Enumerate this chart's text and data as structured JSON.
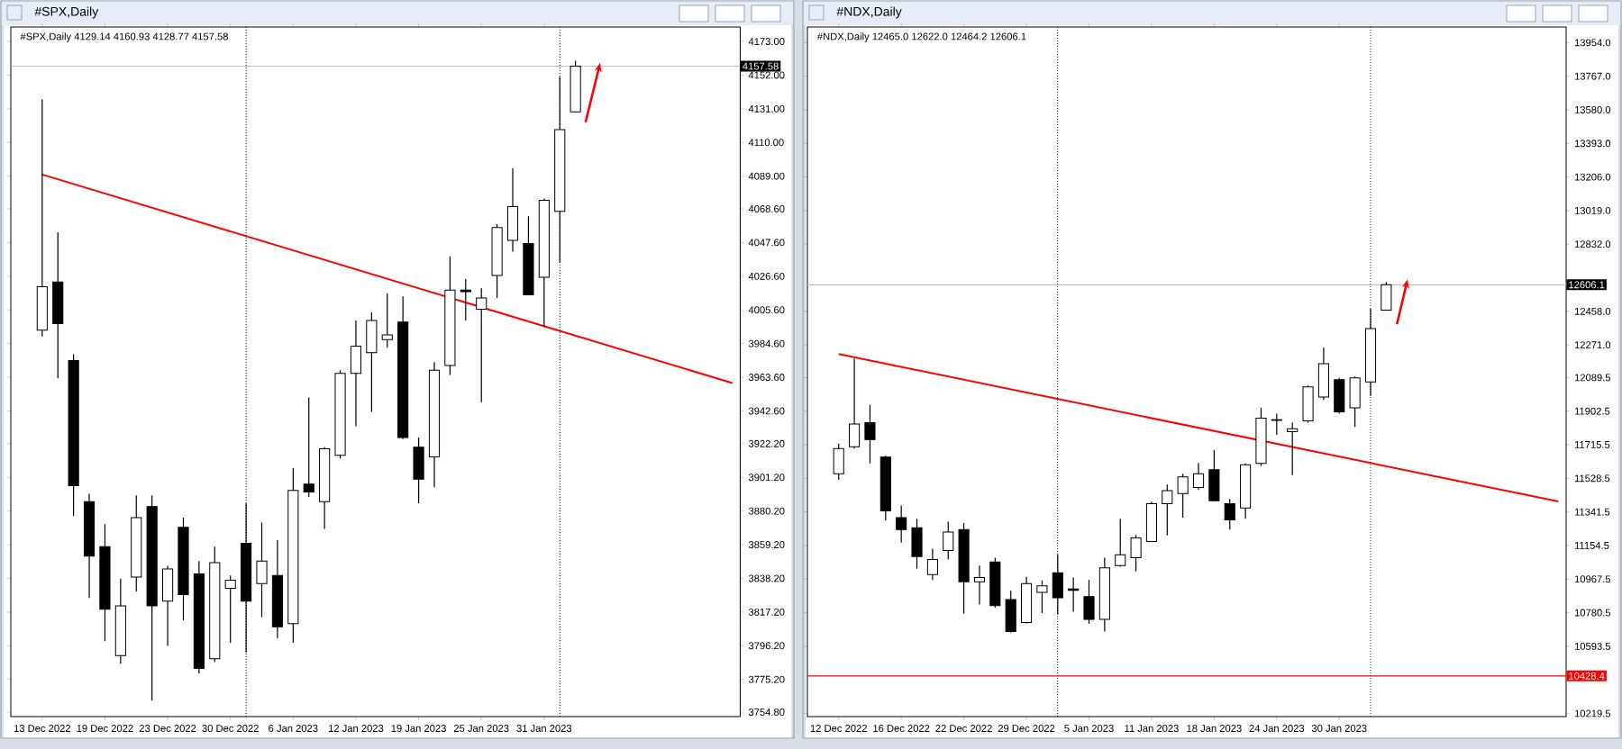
{
  "chart_data": [
    {
      "type": "candlestick",
      "title": "#SPX,Daily",
      "subtitle": "#SPX,Daily  4129.14 4160.93 4128.77 4157.58",
      "categories": [
        "13 Dec 2022",
        null,
        null,
        null,
        "19 Dec 2022",
        null,
        null,
        null,
        "23 Dec 2022",
        null,
        null,
        null,
        "30 Dec 2022",
        null,
        null,
        null,
        "6 Jan 2023",
        null,
        null,
        null,
        "12 Jan 2023",
        null,
        null,
        null,
        "19 Jan 2023",
        null,
        null,
        null,
        "25 Jan 2023",
        null,
        null,
        null,
        "31 Jan 2023",
        null,
        null,
        null,
        null,
        null,
        null,
        null,
        null,
        null,
        null,
        null,
        null
      ],
      "ohlc": [
        [
          3993,
          4137,
          3989,
          4020
        ],
        [
          4023,
          4054,
          3963,
          3997
        ],
        [
          3974,
          3978,
          3877,
          3896
        ],
        [
          3886,
          3891,
          3826,
          3852
        ],
        [
          3858,
          3872,
          3799,
          3819
        ],
        [
          3790,
          3838,
          3785,
          3821
        ],
        [
          3839,
          3890,
          3830,
          3876
        ],
        [
          3883,
          3890,
          3762,
          3821
        ],
        [
          3824,
          3846,
          3796,
          3844
        ],
        [
          3870,
          3876,
          3812,
          3828
        ],
        [
          3841,
          3849,
          3779,
          3782
        ],
        [
          3788,
          3858,
          3786,
          3848
        ],
        [
          3832,
          3840,
          3798,
          3837
        ],
        [
          3860,
          3885,
          3792,
          3824
        ],
        [
          3835,
          3873,
          3814,
          3849
        ],
        [
          3840,
          3862,
          3801,
          3808
        ],
        [
          3810,
          3907,
          3798,
          3893
        ],
        [
          3897,
          3951,
          3889,
          3892
        ],
        [
          3886,
          3920,
          3869,
          3919
        ],
        [
          3915,
          3968,
          3913,
          3966
        ],
        [
          3966,
          3999,
          3933,
          3983
        ],
        [
          3979,
          4004,
          3942,
          3999
        ],
        [
          3987,
          4016,
          3982,
          3990
        ],
        [
          3998,
          4014,
          3925,
          3926
        ],
        [
          3920,
          3926,
          3885,
          3900
        ],
        [
          3914,
          3973,
          3895,
          3968
        ],
        [
          3971,
          4039,
          3965,
          4018
        ],
        [
          4018,
          4025,
          3999,
          4017
        ],
        [
          4006,
          4019,
          3948,
          4013
        ],
        [
          4027,
          4059,
          4013,
          4057
        ],
        [
          4049,
          4094,
          4042,
          4070
        ],
        [
          4047,
          4064,
          4015,
          4015
        ],
        [
          4026,
          4075,
          3995,
          4074
        ],
        [
          4067,
          4151,
          4035,
          4118
        ],
        [
          4129.14,
          4160.93,
          4128.77,
          4157.58
        ],
        null,
        null,
        null,
        null,
        null,
        null,
        null,
        null,
        null,
        null
      ],
      "series": [
        {
          "type": "line",
          "color": "#ff0000",
          "values": [
            4090,
            null,
            null,
            null,
            null,
            null,
            null,
            null,
            null,
            null,
            null,
            null,
            null,
            null,
            null,
            null,
            null,
            null,
            null,
            null,
            null,
            null,
            null,
            null,
            null,
            null,
            null,
            null,
            null,
            null,
            null,
            null,
            null,
            null,
            null,
            null,
            null,
            null,
            null,
            null,
            null,
            null,
            null,
            null,
            3960
          ]
        }
      ],
      "ylim": [
        3752,
        4182
      ],
      "yticks": [
        {
          "value": 4173,
          "label": "4173.00"
        },
        {
          "value": 4152,
          "label": "4152.00"
        },
        {
          "value": 4131,
          "label": "4131.00"
        },
        {
          "value": 4110,
          "label": "4110.00"
        },
        {
          "value": 4089,
          "label": "4089.00"
        },
        {
          "value": 4068.6,
          "label": "4068.60"
        },
        {
          "value": 4047.6,
          "label": "4047.60"
        },
        {
          "value": 4026.6,
          "label": "4026.60"
        },
        {
          "value": 4005.6,
          "label": "4005.60"
        },
        {
          "value": 3984.6,
          "label": "3984.60"
        },
        {
          "value": 3963.6,
          "label": "3963.60"
        },
        {
          "value": 3942.6,
          "label": "3942.60"
        },
        {
          "value": 3922.2,
          "label": "3922.20"
        },
        {
          "value": 3901.2,
          "label": "3901.20"
        },
        {
          "value": 3880.2,
          "label": "3880.20"
        },
        {
          "value": 3859.2,
          "label": "3859.20"
        },
        {
          "value": 3838.2,
          "label": "3838.20"
        },
        {
          "value": 3817.2,
          "label": "3817.20"
        },
        {
          "value": 3796.2,
          "label": "3796.20"
        },
        {
          "value": 3775.2,
          "label": "3775.20"
        },
        {
          "value": 3754.8,
          "label": "3754.80"
        }
      ],
      "ref_lines": [
        {
          "axis": "y",
          "value": 4157.58,
          "label": "4157.58",
          "color": "#c0c0c0"
        }
      ]
    },
    {
      "type": "candlestick",
      "title": "#NDX,Daily",
      "subtitle": "#NDX,Daily  12465.0 12622.0 12464.2 12606.1",
      "categories": [
        "12 Dec 2022",
        null,
        null,
        null,
        "16 Dec 2022",
        null,
        null,
        null,
        "22 Dec 2022",
        null,
        null,
        null,
        "29 Dec 2022",
        null,
        null,
        null,
        "5 Jan 2023",
        null,
        null,
        null,
        "11 Jan 2023",
        null,
        null,
        null,
        "18 Jan 2023",
        null,
        null,
        null,
        "24 Jan 2023",
        null,
        null,
        null,
        "30 Jan 2023",
        null,
        null,
        null,
        null,
        null,
        null,
        null,
        null,
        null,
        null,
        null,
        null,
        null,
        null
      ],
      "ohlc": [
        [
          11554,
          11721,
          11520,
          11694
        ],
        [
          11704,
          12195,
          11694,
          11831
        ],
        [
          11838,
          11938,
          11611,
          11744
        ],
        [
          11647,
          11654,
          11293,
          11347
        ],
        [
          11310,
          11377,
          11170,
          11243
        ],
        [
          11253,
          11303,
          11026,
          11093
        ],
        [
          10993,
          11137,
          10963,
          11076
        ],
        [
          11127,
          11287,
          11076,
          11230
        ],
        [
          11243,
          11280,
          10776,
          10953
        ],
        [
          10953,
          11043,
          10826,
          10976
        ],
        [
          11063,
          11086,
          10809,
          10820
        ],
        [
          10853,
          10903,
          10669,
          10676
        ],
        [
          10726,
          10980,
          10719,
          10943
        ],
        [
          10893,
          10960,
          10779,
          10930
        ],
        [
          11003,
          11103,
          10769,
          10863
        ],
        [
          10913,
          10976,
          10786,
          10905
        ],
        [
          10870,
          10963,
          10719,
          10743
        ],
        [
          10743,
          11086,
          10676,
          11030
        ],
        [
          11043,
          11303,
          11036,
          11103
        ],
        [
          11086,
          11213,
          11010,
          11197
        ],
        [
          11177,
          11397,
          11177,
          11387
        ],
        [
          11387,
          11494,
          11210,
          11460
        ],
        [
          11444,
          11554,
          11310,
          11537
        ],
        [
          11477,
          11614,
          11464,
          11554
        ],
        [
          11577,
          11687,
          11404,
          11404
        ],
        [
          11387,
          11414,
          11243,
          11297
        ],
        [
          11364,
          11611,
          11303,
          11604
        ],
        [
          11611,
          11921,
          11597,
          11864
        ],
        [
          11855,
          11888,
          11771,
          11851
        ],
        [
          11788,
          11838,
          11547,
          11804
        ],
        [
          11848,
          12045,
          11838,
          12038
        ],
        [
          11981,
          12255,
          11965,
          12167
        ],
        [
          12078,
          12088,
          11890,
          11898
        ],
        [
          11921,
          12095,
          11814,
          12088
        ],
        [
          12065,
          12472,
          11988,
          12362
        ],
        [
          12465.0,
          12622.0,
          12464.2,
          12606.1
        ],
        null,
        null,
        null,
        null,
        null,
        null,
        null,
        null,
        null,
        null,
        null
      ],
      "series": [
        {
          "type": "line",
          "color": "#ff0000",
          "values": [
            12220,
            null,
            null,
            null,
            null,
            null,
            null,
            null,
            null,
            null,
            null,
            null,
            null,
            null,
            null,
            null,
            null,
            null,
            null,
            null,
            null,
            null,
            null,
            null,
            null,
            null,
            null,
            null,
            null,
            null,
            null,
            null,
            null,
            null,
            null,
            null,
            null,
            null,
            null,
            null,
            null,
            null,
            null,
            null,
            null,
            null,
            11400
          ]
        }
      ],
      "ylim": [
        10202,
        14041
      ],
      "yticks": [
        {
          "value": 13954,
          "label": "13954.0"
        },
        {
          "value": 13767,
          "label": "13767.0"
        },
        {
          "value": 13580,
          "label": "13580.0"
        },
        {
          "value": 13393,
          "label": "13393.0"
        },
        {
          "value": 13206,
          "label": "13206.0"
        },
        {
          "value": 13019,
          "label": "13019.0"
        },
        {
          "value": 12832,
          "label": "12832.0"
        },
        {
          "value": 12458,
          "label": "12458.0"
        },
        {
          "value": 12271,
          "label": "12271.0"
        },
        {
          "value": 12089.5,
          "label": "12089.5"
        },
        {
          "value": 11902.5,
          "label": "11902.5"
        },
        {
          "value": 11715.5,
          "label": "11715.5"
        },
        {
          "value": 11528.5,
          "label": "11528.5"
        },
        {
          "value": 11341.5,
          "label": "11341.5"
        },
        {
          "value": 11154.5,
          "label": "11154.5"
        },
        {
          "value": 10967.5,
          "label": "10967.5"
        },
        {
          "value": 10780.5,
          "label": "10780.5"
        },
        {
          "value": 10593.5,
          "label": "10593.5"
        },
        {
          "value": 10219.5,
          "label": "10219.5"
        }
      ],
      "ref_lines": [
        {
          "axis": "y",
          "value": 12606.1,
          "label": "12606.1",
          "color": "#c0c0c0"
        },
        {
          "axis": "y",
          "value": 10428.4,
          "label": "10428.4",
          "color": "#ff0000"
        }
      ]
    }
  ]
}
